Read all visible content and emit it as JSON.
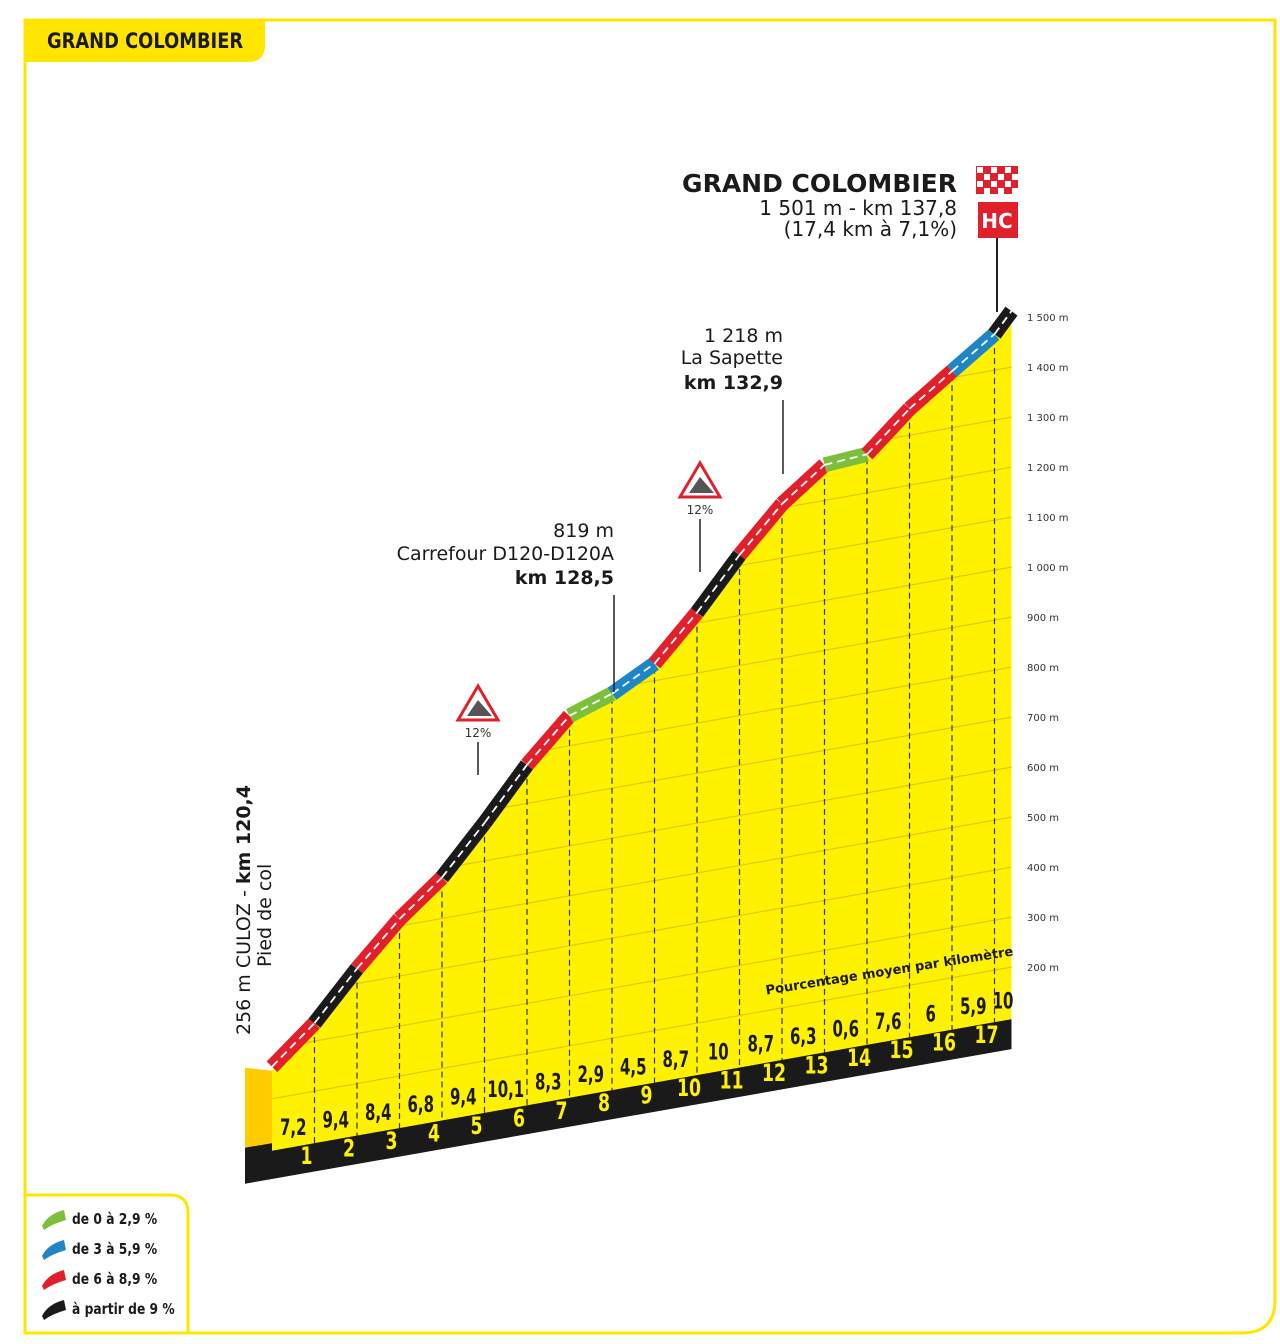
{
  "chart_data": {
    "type": "climb-profile",
    "title": "GRAND COLOMBIER",
    "summit": {
      "name": "GRAND COLOMBIER",
      "detail": "1 501 m - km 137,8",
      "stats": "(17,4 km à 7,1%)",
      "category": "HC"
    },
    "start": {
      "value": 256,
      "label": "256 m CULOZ - ",
      "km": "km 120,4",
      "sub": "Pied de col"
    },
    "annotations": [
      {
        "elevation": "819 m",
        "name": "Carrefour D120-D120A",
        "km": "km 128,5"
      },
      {
        "elevation": "1 218 m",
        "name": "La Sapette",
        "km": "km 132,9"
      }
    ],
    "steep_markers": [
      "12%",
      "12%"
    ],
    "note": "Pourcentage moyen par kilomètre",
    "categories": [
      "1",
      "2",
      "3",
      "4",
      "5",
      "6",
      "7",
      "8",
      "9",
      "10",
      "11",
      "12",
      "13",
      "14",
      "15",
      "16",
      "17",
      null
    ],
    "values": [
      7.2,
      9.4,
      8.4,
      6.8,
      9.4,
      10.1,
      8.3,
      2.9,
      4.5,
      8.7,
      10,
      8.7,
      6.3,
      0.6,
      7.6,
      6,
      5.9,
      10
    ],
    "value_labels": [
      "7,2",
      "9,4",
      "8,4",
      "6,8",
      "9,4",
      "10,1",
      "8,3",
      "2,9",
      "4,5",
      "8,7",
      "10",
      "8,7",
      "6,3",
      "0,6",
      "7,6",
      "6",
      "5,9",
      "10"
    ],
    "ylim": [
      0,
      1500
    ],
    "yticks": [
      {
        "value": 200,
        "label": "200 m"
      },
      {
        "value": 300,
        "label": "300 m"
      },
      {
        "value": 400,
        "label": "400 m"
      },
      {
        "value": 500,
        "label": "500 m"
      },
      {
        "value": 600,
        "label": "600 m"
      },
      {
        "value": 700,
        "label": "700 m"
      },
      {
        "value": 800,
        "label": "800 m"
      },
      {
        "value": 900,
        "label": "900 m"
      },
      {
        "value": 1000,
        "label": "1 000 m"
      },
      {
        "value": 1100,
        "label": "1 100 m"
      },
      {
        "value": 1200,
        "label": "1 200 m"
      },
      {
        "value": 1300,
        "label": "1 300 m"
      },
      {
        "value": 1400,
        "label": "1 400 m"
      },
      {
        "value": 1500,
        "label": "1 500 m"
      }
    ],
    "grid": true,
    "legend": [
      {
        "label": "de 0 à 2,9 %",
        "color": "#7cbf3b",
        "min": 0
      },
      {
        "label": "de 3 à 5,9 %",
        "color": "#1f86c6",
        "min": 3
      },
      {
        "label": "de 6 à 8,9 %",
        "color": "#e2202b",
        "min": 6
      },
      {
        "label": "à partir de 9 %",
        "color": "#1a1a1a",
        "min": 9
      }
    ]
  }
}
